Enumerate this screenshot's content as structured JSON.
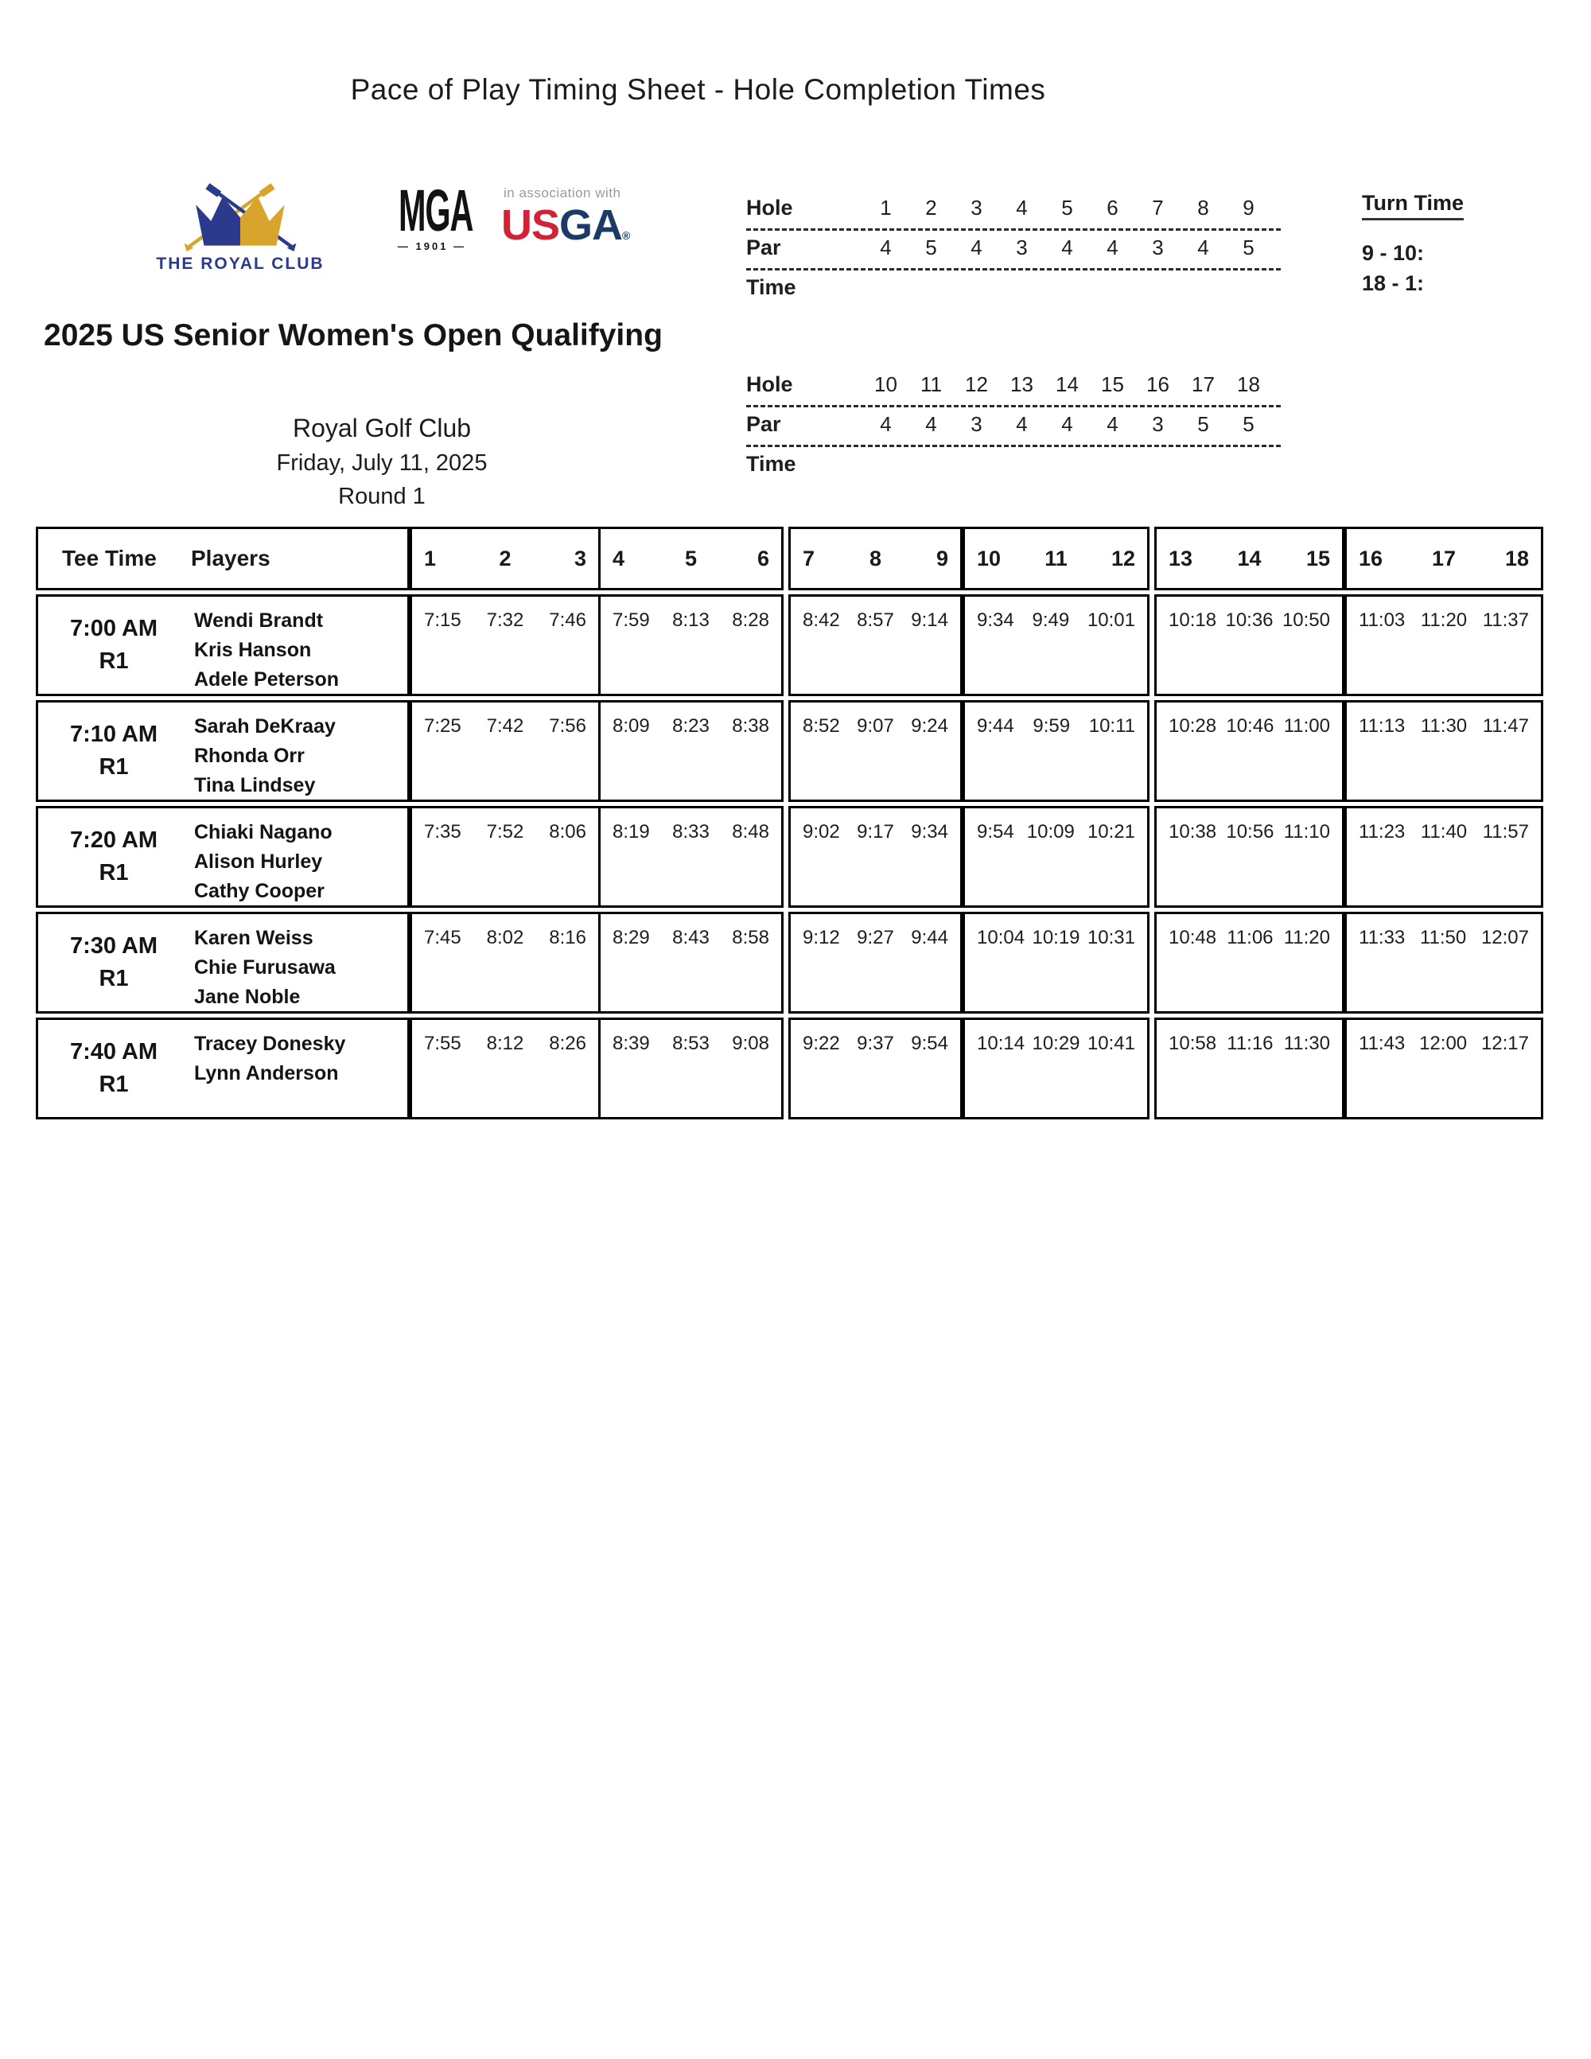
{
  "page_title": "Pace of Play Timing Sheet - Hole Completion Times",
  "logos": {
    "royal_club": {
      "name": "THE ROYAL CLUB",
      "navy": "#2b3a8c",
      "gold": "#d7a52c"
    },
    "mga": {
      "text": "MGA",
      "year_line": "— 1901 —"
    },
    "association": "in association with",
    "usga": {
      "us": "US",
      "ga": "GA",
      "reg": "®",
      "red": "#d22237",
      "navy": "#1b3a66"
    }
  },
  "turn_time": {
    "title": "Turn Time",
    "lines": [
      "9 - 10:",
      "18 - 1:"
    ]
  },
  "front_nine": {
    "hole_label": "Hole",
    "par_label": "Par",
    "time_label": "Time",
    "holes": [
      "1",
      "2",
      "3",
      "4",
      "5",
      "6",
      "7",
      "8",
      "9"
    ],
    "pars": [
      "4",
      "5",
      "4",
      "3",
      "4",
      "4",
      "3",
      "4",
      "5"
    ]
  },
  "back_nine": {
    "hole_label": "Hole",
    "par_label": "Par",
    "time_label": "Time",
    "holes": [
      "10",
      "11",
      "12",
      "13",
      "14",
      "15",
      "16",
      "17",
      "18"
    ],
    "pars": [
      "4",
      "4",
      "3",
      "4",
      "4",
      "4",
      "3",
      "5",
      "5"
    ]
  },
  "event": {
    "title": "2025 US Senior Women's Open Qualifying",
    "club": "Royal Golf Club",
    "date": "Friday, July 11, 2025",
    "round": "Round 1"
  },
  "table": {
    "headers": {
      "tee_time": "Tee Time",
      "players": "Players"
    },
    "hole_groups": [
      [
        "1",
        "2",
        "3"
      ],
      [
        "4",
        "5",
        "6"
      ],
      [
        "7",
        "8",
        "9"
      ],
      [
        "10",
        "11",
        "12"
      ],
      [
        "13",
        "14",
        "15"
      ],
      [
        "16",
        "17",
        "18"
      ]
    ],
    "rows": [
      {
        "tee_time": "7:00 AM",
        "round": "R1",
        "players": [
          "Wendi Brandt",
          "Kris Hanson",
          "Adele Peterson"
        ],
        "times": [
          [
            "7:15",
            "7:32",
            "7:46"
          ],
          [
            "7:59",
            "8:13",
            "8:28"
          ],
          [
            "8:42",
            "8:57",
            "9:14"
          ],
          [
            "9:34",
            "9:49",
            "10:01"
          ],
          [
            "10:18",
            "10:36",
            "10:50"
          ],
          [
            "11:03",
            "11:20",
            "11:37"
          ]
        ]
      },
      {
        "tee_time": "7:10 AM",
        "round": "R1",
        "players": [
          "Sarah DeKraay",
          "Rhonda Orr",
          "Tina Lindsey"
        ],
        "times": [
          [
            "7:25",
            "7:42",
            "7:56"
          ],
          [
            "8:09",
            "8:23",
            "8:38"
          ],
          [
            "8:52",
            "9:07",
            "9:24"
          ],
          [
            "9:44",
            "9:59",
            "10:11"
          ],
          [
            "10:28",
            "10:46",
            "11:00"
          ],
          [
            "11:13",
            "11:30",
            "11:47"
          ]
        ]
      },
      {
        "tee_time": "7:20 AM",
        "round": "R1",
        "players": [
          "Chiaki Nagano",
          "Alison Hurley",
          "Cathy Cooper"
        ],
        "times": [
          [
            "7:35",
            "7:52",
            "8:06"
          ],
          [
            "8:19",
            "8:33",
            "8:48"
          ],
          [
            "9:02",
            "9:17",
            "9:34"
          ],
          [
            "9:54",
            "10:09",
            "10:21"
          ],
          [
            "10:38",
            "10:56",
            "11:10"
          ],
          [
            "11:23",
            "11:40",
            "11:57"
          ]
        ]
      },
      {
        "tee_time": "7:30 AM",
        "round": "R1",
        "players": [
          "Karen Weiss",
          "Chie Furusawa",
          "Jane Noble"
        ],
        "times": [
          [
            "7:45",
            "8:02",
            "8:16"
          ],
          [
            "8:29",
            "8:43",
            "8:58"
          ],
          [
            "9:12",
            "9:27",
            "9:44"
          ],
          [
            "10:04",
            "10:19",
            "10:31"
          ],
          [
            "10:48",
            "11:06",
            "11:20"
          ],
          [
            "11:33",
            "11:50",
            "12:07"
          ]
        ]
      },
      {
        "tee_time": "7:40 AM",
        "round": "R1",
        "players": [
          "Tracey Donesky",
          "Lynn Anderson"
        ],
        "times": [
          [
            "7:55",
            "8:12",
            "8:26"
          ],
          [
            "8:39",
            "8:53",
            "9:08"
          ],
          [
            "9:22",
            "9:37",
            "9:54"
          ],
          [
            "10:14",
            "10:29",
            "10:41"
          ],
          [
            "10:58",
            "11:16",
            "11:30"
          ],
          [
            "11:43",
            "12:00",
            "12:17"
          ]
        ]
      }
    ]
  }
}
